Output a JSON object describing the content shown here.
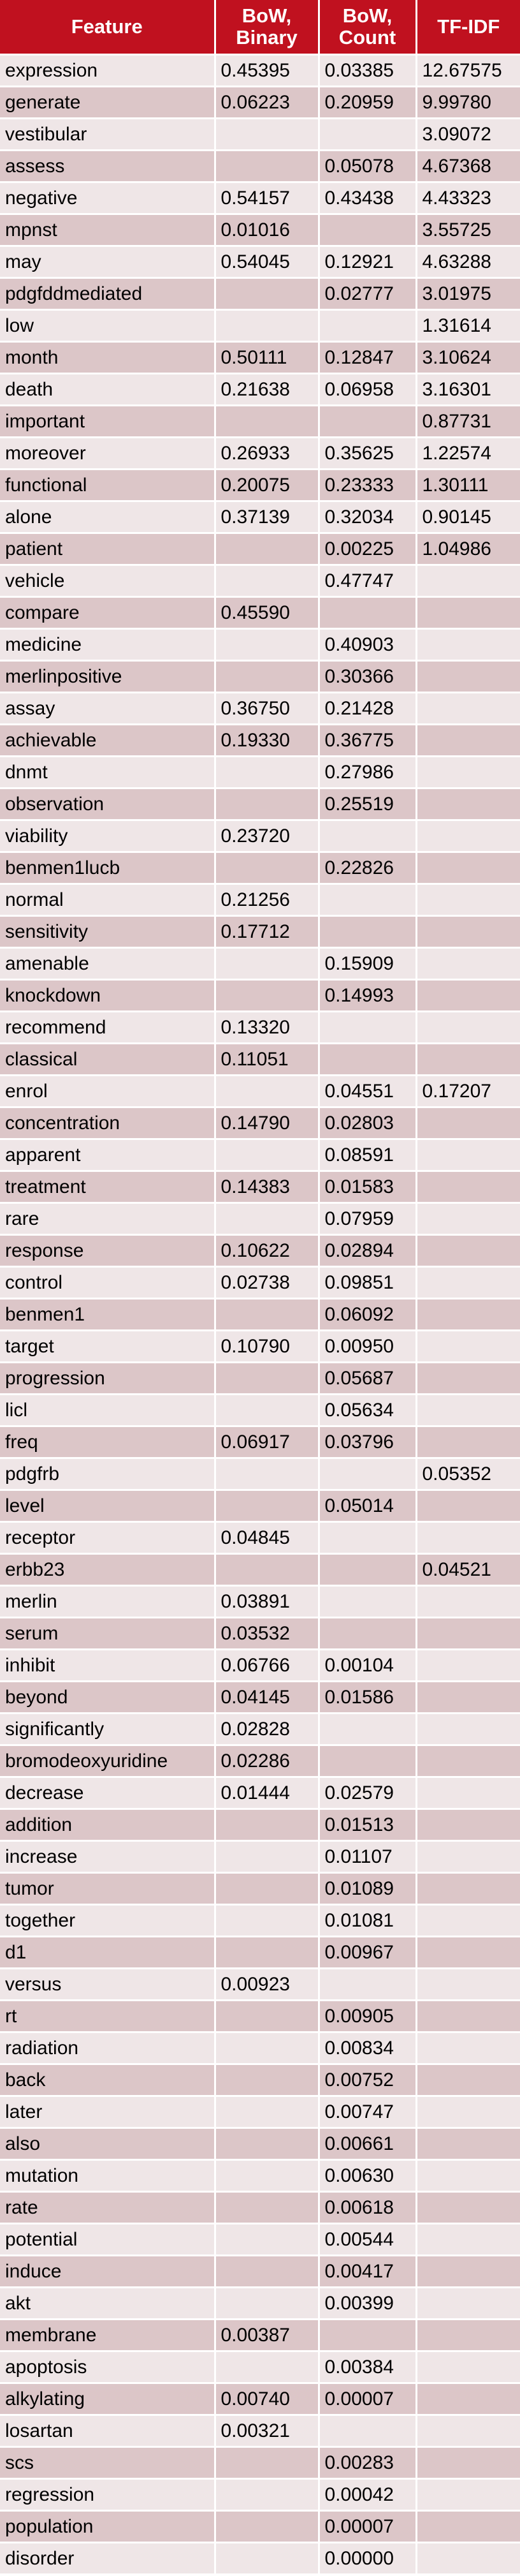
{
  "header": {
    "feature": "Feature",
    "bow_binary_line1": "BoW,",
    "bow_binary_line2": "Binary",
    "bow_count_line1": "BoW,",
    "bow_count_line2": "Count",
    "tfidf": "TF-IDF"
  },
  "colors": {
    "header_bg": "#c0111f",
    "header_text": "#ffffff",
    "row_light": "#efe6e7",
    "row_dark": "#dcc6c8"
  },
  "rows": [
    {
      "feature": "expression",
      "bow_binary": "0.45395",
      "bow_count": "0.03385",
      "tfidf": "12.67575"
    },
    {
      "feature": "generate",
      "bow_binary": "0.06223",
      "bow_count": "0.20959",
      "tfidf": "9.99780"
    },
    {
      "feature": "vestibular",
      "bow_binary": "",
      "bow_count": "",
      "tfidf": "3.09072"
    },
    {
      "feature": "assess",
      "bow_binary": "",
      "bow_count": "0.05078",
      "tfidf": "4.67368"
    },
    {
      "feature": "negative",
      "bow_binary": "0.54157",
      "bow_count": "0.43438",
      "tfidf": "4.43323"
    },
    {
      "feature": "mpnst",
      "bow_binary": "0.01016",
      "bow_count": "",
      "tfidf": "3.55725"
    },
    {
      "feature": "may",
      "bow_binary": "0.54045",
      "bow_count": "0.12921",
      "tfidf": "4.63288"
    },
    {
      "feature": "pdgfddmediated",
      "bow_binary": "",
      "bow_count": "0.02777",
      "tfidf": "3.01975"
    },
    {
      "feature": "low",
      "bow_binary": "",
      "bow_count": "",
      "tfidf": "1.31614"
    },
    {
      "feature": "month",
      "bow_binary": "0.50111",
      "bow_count": "0.12847",
      "tfidf": "3.10624"
    },
    {
      "feature": "death",
      "bow_binary": "0.21638",
      "bow_count": "0.06958",
      "tfidf": "3.16301"
    },
    {
      "feature": "important",
      "bow_binary": "",
      "bow_count": "",
      "tfidf": "0.87731"
    },
    {
      "feature": "moreover",
      "bow_binary": "0.26933",
      "bow_count": "0.35625",
      "tfidf": "1.22574"
    },
    {
      "feature": "functional",
      "bow_binary": "0.20075",
      "bow_count": "0.23333",
      "tfidf": "1.30111"
    },
    {
      "feature": "alone",
      "bow_binary": "0.37139",
      "bow_count": "0.32034",
      "tfidf": "0.90145"
    },
    {
      "feature": "patient",
      "bow_binary": "",
      "bow_count": "0.00225",
      "tfidf": "1.04986"
    },
    {
      "feature": "vehicle",
      "bow_binary": "",
      "bow_count": "0.47747",
      "tfidf": ""
    },
    {
      "feature": "compare",
      "bow_binary": "0.45590",
      "bow_count": "",
      "tfidf": ""
    },
    {
      "feature": "medicine",
      "bow_binary": "",
      "bow_count": "0.40903",
      "tfidf": ""
    },
    {
      "feature": "merlinpositive",
      "bow_binary": "",
      "bow_count": "0.30366",
      "tfidf": ""
    },
    {
      "feature": "assay",
      "bow_binary": "0.36750",
      "bow_count": "0.21428",
      "tfidf": ""
    },
    {
      "feature": "achievable",
      "bow_binary": "0.19330",
      "bow_count": "0.36775",
      "tfidf": ""
    },
    {
      "feature": "dnmt",
      "bow_binary": "",
      "bow_count": "0.27986",
      "tfidf": ""
    },
    {
      "feature": "observation",
      "bow_binary": "",
      "bow_count": "0.25519",
      "tfidf": ""
    },
    {
      "feature": "viability",
      "bow_binary": "0.23720",
      "bow_count": "",
      "tfidf": ""
    },
    {
      "feature": "benmen1lucb",
      "bow_binary": "",
      "bow_count": "0.22826",
      "tfidf": ""
    },
    {
      "feature": "normal",
      "bow_binary": "0.21256",
      "bow_count": "",
      "tfidf": ""
    },
    {
      "feature": "sensitivity",
      "bow_binary": "0.17712",
      "bow_count": "",
      "tfidf": ""
    },
    {
      "feature": "amenable",
      "bow_binary": "",
      "bow_count": "0.15909",
      "tfidf": ""
    },
    {
      "feature": "knockdown",
      "bow_binary": "",
      "bow_count": "0.14993",
      "tfidf": ""
    },
    {
      "feature": "recommend",
      "bow_binary": "0.13320",
      "bow_count": "",
      "tfidf": ""
    },
    {
      "feature": "classical",
      "bow_binary": "0.11051",
      "bow_count": "",
      "tfidf": ""
    },
    {
      "feature": "enrol",
      "bow_binary": "",
      "bow_count": "0.04551",
      "tfidf": "0.17207"
    },
    {
      "feature": "concentration",
      "bow_binary": "0.14790",
      "bow_count": "0.02803",
      "tfidf": ""
    },
    {
      "feature": "apparent",
      "bow_binary": "",
      "bow_count": "0.08591",
      "tfidf": ""
    },
    {
      "feature": "treatment",
      "bow_binary": "0.14383",
      "bow_count": "0.01583",
      "tfidf": ""
    },
    {
      "feature": "rare",
      "bow_binary": "",
      "bow_count": "0.07959",
      "tfidf": ""
    },
    {
      "feature": "response",
      "bow_binary": "0.10622",
      "bow_count": "0.02894",
      "tfidf": ""
    },
    {
      "feature": "control",
      "bow_binary": "0.02738",
      "bow_count": "0.09851",
      "tfidf": ""
    },
    {
      "feature": "benmen1",
      "bow_binary": "",
      "bow_count": "0.06092",
      "tfidf": ""
    },
    {
      "feature": "target",
      "bow_binary": "0.10790",
      "bow_count": "0.00950",
      "tfidf": ""
    },
    {
      "feature": "progression",
      "bow_binary": "",
      "bow_count": "0.05687",
      "tfidf": ""
    },
    {
      "feature": "licl",
      "bow_binary": "",
      "bow_count": "0.05634",
      "tfidf": ""
    },
    {
      "feature": "freq",
      "bow_binary": "0.06917",
      "bow_count": "0.03796",
      "tfidf": ""
    },
    {
      "feature": "pdgfrb",
      "bow_binary": "",
      "bow_count": "",
      "tfidf": "0.05352"
    },
    {
      "feature": "level",
      "bow_binary": "",
      "bow_count": "0.05014",
      "tfidf": ""
    },
    {
      "feature": "receptor",
      "bow_binary": "0.04845",
      "bow_count": "",
      "tfidf": ""
    },
    {
      "feature": "erbb23",
      "bow_binary": "",
      "bow_count": "",
      "tfidf": "0.04521"
    },
    {
      "feature": "merlin",
      "bow_binary": "0.03891",
      "bow_count": "",
      "tfidf": ""
    },
    {
      "feature": "serum",
      "bow_binary": "0.03532",
      "bow_count": "",
      "tfidf": ""
    },
    {
      "feature": "inhibit",
      "bow_binary": "0.06766",
      "bow_count": "0.00104",
      "tfidf": ""
    },
    {
      "feature": "beyond",
      "bow_binary": "0.04145",
      "bow_count": "0.01586",
      "tfidf": ""
    },
    {
      "feature": "significantly",
      "bow_binary": "0.02828",
      "bow_count": "",
      "tfidf": ""
    },
    {
      "feature": "bromodeoxyuridine",
      "bow_binary": "0.02286",
      "bow_count": "",
      "tfidf": ""
    },
    {
      "feature": "decrease",
      "bow_binary": "0.01444",
      "bow_count": "0.02579",
      "tfidf": ""
    },
    {
      "feature": "addition",
      "bow_binary": "",
      "bow_count": "0.01513",
      "tfidf": ""
    },
    {
      "feature": "increase",
      "bow_binary": "",
      "bow_count": "0.01107",
      "tfidf": ""
    },
    {
      "feature": "tumor",
      "bow_binary": "",
      "bow_count": "0.01089",
      "tfidf": ""
    },
    {
      "feature": "together",
      "bow_binary": "",
      "bow_count": "0.01081",
      "tfidf": ""
    },
    {
      "feature": "d1",
      "bow_binary": "",
      "bow_count": "0.00967",
      "tfidf": ""
    },
    {
      "feature": "versus",
      "bow_binary": "0.00923",
      "bow_count": "",
      "tfidf": ""
    },
    {
      "feature": "rt",
      "bow_binary": "",
      "bow_count": "0.00905",
      "tfidf": ""
    },
    {
      "feature": "radiation",
      "bow_binary": "",
      "bow_count": "0.00834",
      "tfidf": ""
    },
    {
      "feature": "back",
      "bow_binary": "",
      "bow_count": "0.00752",
      "tfidf": ""
    },
    {
      "feature": "later",
      "bow_binary": "",
      "bow_count": "0.00747",
      "tfidf": ""
    },
    {
      "feature": "also",
      "bow_binary": "",
      "bow_count": "0.00661",
      "tfidf": ""
    },
    {
      "feature": "mutation",
      "bow_binary": "",
      "bow_count": "0.00630",
      "tfidf": ""
    },
    {
      "feature": "rate",
      "bow_binary": "",
      "bow_count": "0.00618",
      "tfidf": ""
    },
    {
      "feature": "potential",
      "bow_binary": "",
      "bow_count": "0.00544",
      "tfidf": ""
    },
    {
      "feature": "induce",
      "bow_binary": "",
      "bow_count": "0.00417",
      "tfidf": ""
    },
    {
      "feature": "akt",
      "bow_binary": "",
      "bow_count": "0.00399",
      "tfidf": ""
    },
    {
      "feature": "membrane",
      "bow_binary": "0.00387",
      "bow_count": "",
      "tfidf": ""
    },
    {
      "feature": "apoptosis",
      "bow_binary": "",
      "bow_count": "0.00384",
      "tfidf": ""
    },
    {
      "feature": "alkylating",
      "bow_binary": "0.00740",
      "bow_count": "0.00007",
      "tfidf": ""
    },
    {
      "feature": "losartan",
      "bow_binary": "0.00321",
      "bow_count": "",
      "tfidf": ""
    },
    {
      "feature": "scs",
      "bow_binary": "",
      "bow_count": "0.00283",
      "tfidf": ""
    },
    {
      "feature": "regression",
      "bow_binary": "",
      "bow_count": "0.00042",
      "tfidf": ""
    },
    {
      "feature": "population",
      "bow_binary": "",
      "bow_count": "0.00007",
      "tfidf": ""
    },
    {
      "feature": "disorder",
      "bow_binary": "",
      "bow_count": "0.00000",
      "tfidf": ""
    }
  ]
}
